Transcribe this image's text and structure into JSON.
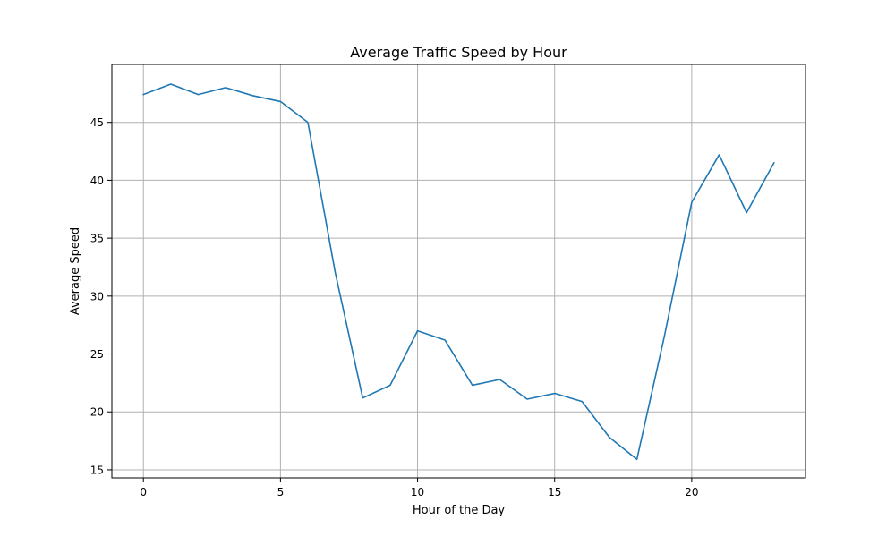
{
  "chart_data": {
    "type": "line",
    "title": "Average Traffic Speed by Hour",
    "xlabel": "Hour of the Day",
    "ylabel": "Average Speed",
    "x": [
      0,
      1,
      2,
      3,
      4,
      5,
      6,
      7,
      8,
      9,
      10,
      11,
      12,
      13,
      14,
      15,
      16,
      17,
      18,
      19,
      20,
      21,
      22,
      23
    ],
    "series": [
      {
        "name": "",
        "color": "#1f77b4",
        "values": [
          47.4,
          48.3,
          47.4,
          48.0,
          47.3,
          46.8,
          45.0,
          32.0,
          21.2,
          22.3,
          27.0,
          26.2,
          22.3,
          22.8,
          21.1,
          21.6,
          20.9,
          17.8,
          15.9,
          26.5,
          38.1,
          42.2,
          37.2,
          41.5
        ]
      }
    ],
    "xlim": [
      -1.15,
      24.15
    ],
    "ylim": [
      14.3,
      50.0
    ],
    "xticks": [
      0,
      5,
      10,
      15,
      20
    ],
    "yticks": [
      15,
      20,
      25,
      30,
      35,
      40,
      45
    ],
    "grid": true
  }
}
